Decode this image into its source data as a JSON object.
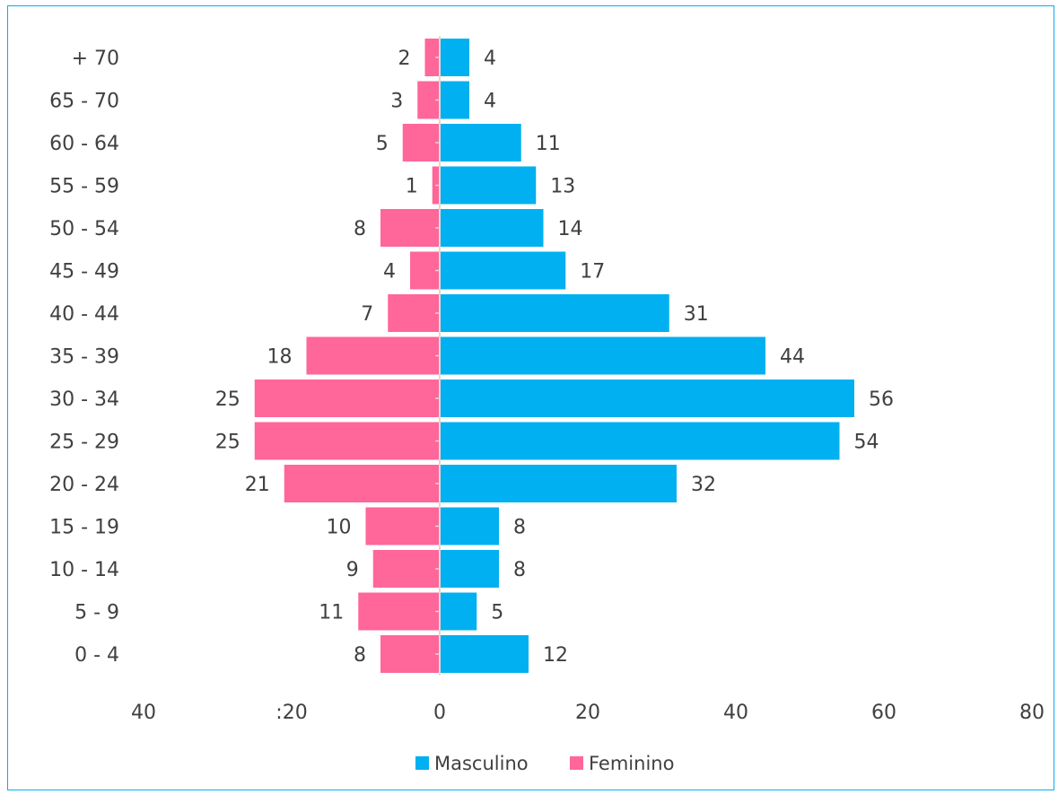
{
  "chart_data": {
    "type": "bar",
    "orientation": "horizontal",
    "title": "",
    "categories": [
      "+ 70",
      "65 - 70",
      "60 - 64",
      "55 - 59",
      "50 - 54",
      "45 - 49",
      "40 - 44",
      "35 - 39",
      "30 - 34",
      "25 - 29",
      "20 - 24",
      "15 - 19",
      "10 - 14",
      "5 - 9",
      "0 - 4"
    ],
    "series": [
      {
        "name": "Masculino",
        "color": "#00b0f0",
        "values": [
          4,
          4,
          11,
          13,
          14,
          17,
          31,
          44,
          56,
          54,
          32,
          8,
          8,
          5,
          12
        ]
      },
      {
        "name": "Feminino",
        "color": "#ff6699",
        "values": [
          2,
          3,
          5,
          1,
          8,
          4,
          7,
          18,
          25,
          25,
          21,
          10,
          9,
          11,
          8
        ]
      }
    ],
    "x_ticks": [
      "40",
      ":20",
      "0",
      "20",
      "40",
      "60",
      "80"
    ],
    "xlim": [
      -40,
      80
    ],
    "grid": false,
    "legend_position": "bottom"
  }
}
